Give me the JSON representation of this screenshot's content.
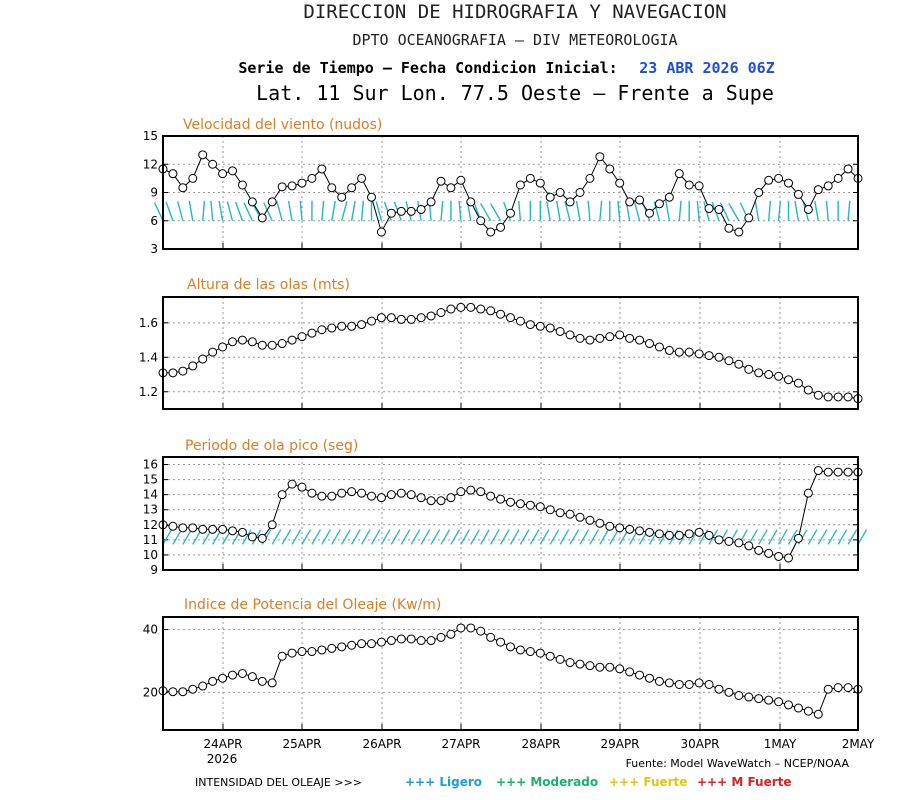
{
  "header": {
    "line1": "DIRECCION DE HIDROGRAFIA Y NAVEGACION",
    "line2": "DPTO OCEANOGRAFIA – DIV METEOROLOGIA",
    "line3_label": "Serie de Tiempo – Fecha Condicion Inicial:",
    "line3_date": "23 ABR 2026 06Z",
    "line4": "Lat. 11 Sur  Lon. 77.5 Oeste – Frente a Supe"
  },
  "colors": {
    "title": "#e07b21",
    "arrows": "#1fb8c8",
    "date": "#1e4fd8",
    "ligero": "#1f9be0",
    "moderado": "#17b36b",
    "fuerte": "#e0c419",
    "mfuerte": "#e02020"
  },
  "chart_data": [
    {
      "type": "line",
      "title": "Velocidad del viento (nudos)",
      "ylim": [
        3,
        15
      ],
      "yticks": [
        3,
        6,
        9,
        12,
        15
      ],
      "grid": true,
      "x_start": "23 ABR 2026 06Z",
      "x_step_hours": 3,
      "values": [
        11.5,
        11,
        9.5,
        10.5,
        13,
        12,
        11,
        11.3,
        9.8,
        8,
        6.3,
        8,
        9.6,
        9.7,
        10,
        10.5,
        11.5,
        9.5,
        8.5,
        9.5,
        10.5,
        8.5,
        4.8,
        6.8,
        7,
        7,
        7.2,
        8,
        10.2,
        9.5,
        10.3,
        8,
        6,
        4.8,
        5.3,
        6.8,
        9.8,
        10.5,
        10,
        8.5,
        9,
        8,
        9,
        10.5,
        12.8,
        11.5,
        10,
        8,
        8.2,
        6.8,
        7.8,
        8.5,
        11,
        9.8,
        9.7,
        7.3,
        7.2,
        5.2,
        4.8,
        6.3,
        9,
        10.3,
        10.5,
        10,
        8.8,
        7.2,
        9.3,
        9.7,
        10.5,
        11.5,
        10.5
      ],
      "arrow_angles_deg": [
        -25,
        -20,
        -15,
        -10,
        5,
        -5,
        -10,
        -15,
        -20,
        -25,
        -30,
        -25,
        -15,
        -10,
        -5,
        0,
        5,
        10,
        15,
        10,
        5,
        0,
        -15,
        -20,
        -20,
        -15,
        -10,
        -5,
        5,
        0,
        -5,
        -10,
        -20,
        -30,
        -30,
        -20,
        -5,
        0,
        0,
        -10,
        -10,
        -15,
        -10,
        -5,
        5,
        0,
        -5,
        -10,
        -15,
        -20,
        -15,
        -10,
        5,
        0,
        -5,
        -15,
        -20,
        -25,
        -30,
        -25,
        -10,
        5,
        5,
        0,
        -10,
        -15,
        -10,
        -5,
        0,
        5,
        0
      ]
    },
    {
      "type": "line",
      "title": "Altura de las olas (mts)",
      "ylim": [
        1.1,
        1.75
      ],
      "yticks": [
        1.2,
        1.4,
        1.6
      ],
      "ytick_labels": [
        "1.2",
        "1.4",
        "1.6"
      ],
      "grid": true,
      "values": [
        1.31,
        1.31,
        1.32,
        1.35,
        1.39,
        1.43,
        1.46,
        1.49,
        1.5,
        1.49,
        1.47,
        1.47,
        1.48,
        1.5,
        1.52,
        1.54,
        1.56,
        1.57,
        1.58,
        1.58,
        1.59,
        1.61,
        1.63,
        1.63,
        1.62,
        1.62,
        1.63,
        1.64,
        1.66,
        1.68,
        1.69,
        1.69,
        1.68,
        1.67,
        1.65,
        1.63,
        1.61,
        1.59,
        1.58,
        1.57,
        1.55,
        1.53,
        1.51,
        1.5,
        1.51,
        1.52,
        1.53,
        1.51,
        1.5,
        1.48,
        1.46,
        1.44,
        1.43,
        1.43,
        1.42,
        1.41,
        1.4,
        1.38,
        1.36,
        1.33,
        1.31,
        1.3,
        1.29,
        1.27,
        1.25,
        1.21,
        1.18,
        1.17,
        1.17,
        1.17,
        1.16
      ]
    },
    {
      "type": "line",
      "title": "Periodo de ola pico (seg)",
      "ylim": [
        9,
        16.5
      ],
      "yticks": [
        9,
        10,
        11,
        12,
        13,
        14,
        15,
        16
      ],
      "grid": true,
      "values": [
        12,
        11.9,
        11.8,
        11.8,
        11.7,
        11.7,
        11.7,
        11.6,
        11.5,
        11.2,
        11.1,
        12,
        14,
        14.7,
        14.5,
        14.1,
        13.9,
        13.9,
        14.1,
        14.2,
        14.1,
        13.9,
        13.8,
        14,
        14.1,
        14,
        13.8,
        13.6,
        13.6,
        13.8,
        14.2,
        14.3,
        14.2,
        13.9,
        13.7,
        13.5,
        13.4,
        13.3,
        13.2,
        13,
        12.8,
        12.7,
        12.5,
        12.3,
        12.1,
        11.9,
        11.8,
        11.7,
        11.6,
        11.5,
        11.4,
        11.3,
        11.3,
        11.4,
        11.5,
        11.3,
        11,
        10.9,
        10.8,
        10.6,
        10.3,
        10.1,
        9.9,
        9.8,
        11.1,
        14.1,
        15.6,
        15.5,
        15.5,
        15.5,
        15.5
      ],
      "arrow_angles_deg": 30
    },
    {
      "type": "line",
      "title": "Indice de Potencia del Oleaje (Kw/m)",
      "ylim": [
        8,
        44
      ],
      "yticks": [
        20,
        40
      ],
      "grid": true,
      "values": [
        20.5,
        20.2,
        20.2,
        21,
        22,
        23.5,
        24.5,
        25.5,
        26,
        25,
        23.5,
        23,
        31.5,
        32.5,
        33,
        33,
        33.5,
        34,
        34.5,
        35,
        35.5,
        35.5,
        36,
        36.5,
        37,
        37,
        36.5,
        36.5,
        37.5,
        38.5,
        40.5,
        40.5,
        39.5,
        37.5,
        36,
        34.5,
        33.5,
        33,
        32.5,
        31.5,
        30.5,
        29.5,
        29,
        28.5,
        28,
        28,
        27.5,
        26.5,
        25.5,
        24.5,
        23.5,
        23,
        22.5,
        22.5,
        23,
        22.5,
        21,
        20,
        19,
        18.5,
        18,
        17.5,
        17,
        16,
        15,
        14,
        13,
        21,
        21.5,
        21.5,
        21
      ]
    }
  ],
  "x_axis": {
    "tick_labels": [
      "24APR",
      "25APR",
      "26APR",
      "27APR",
      "28APR",
      "29APR",
      "30APR",
      "1MAY",
      "2MAY"
    ],
    "year_label": "2026"
  },
  "footer": {
    "source": "Fuente: Model WaveWatch – NCEP/NOAA",
    "legend_label": "INTENSIDAD DEL OLEAJE >>>",
    "legend_items": [
      "+++ Ligero",
      "+++ Moderado",
      "+++ Fuerte",
      "+++ M Fuerte"
    ]
  }
}
